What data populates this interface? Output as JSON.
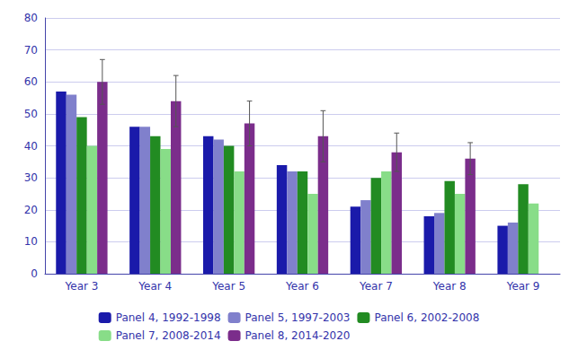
{
  "chart_data": {
    "type": "bar",
    "categories": [
      "Year 3",
      "Year 4",
      "Year 5",
      "Year 6",
      "Year 7",
      "Year 8",
      "Year 9"
    ],
    "series": [
      {
        "name": "Panel 4, 1992-1998",
        "color": "#1A1AAA",
        "values": [
          57,
          46,
          43,
          34,
          21,
          18,
          15
        ]
      },
      {
        "name": "Panel 5, 1997-2003",
        "color": "#8080CC",
        "values": [
          56,
          46,
          42,
          32,
          23,
          19,
          16
        ]
      },
      {
        "name": "Panel 6, 2002-2008",
        "color": "#228B22",
        "values": [
          49,
          43,
          40,
          32,
          30,
          29,
          28
        ]
      },
      {
        "name": "Panel 7, 2008-2014",
        "color": "#88DD88",
        "values": [
          40,
          39,
          32,
          25,
          32,
          25,
          22
        ]
      },
      {
        "name": "Panel 8, 2014-2020",
        "color": "#7B2D8B",
        "values": [
          60,
          54,
          47,
          43,
          38,
          36,
          null
        ],
        "errors": [
          7,
          8,
          7,
          8,
          6,
          5,
          null
        ]
      }
    ],
    "ylim": [
      0,
      80
    ],
    "yticks": [
      0,
      10,
      20,
      30,
      40,
      50,
      60,
      70,
      80
    ],
    "grid": true,
    "legend": "bottom"
  }
}
